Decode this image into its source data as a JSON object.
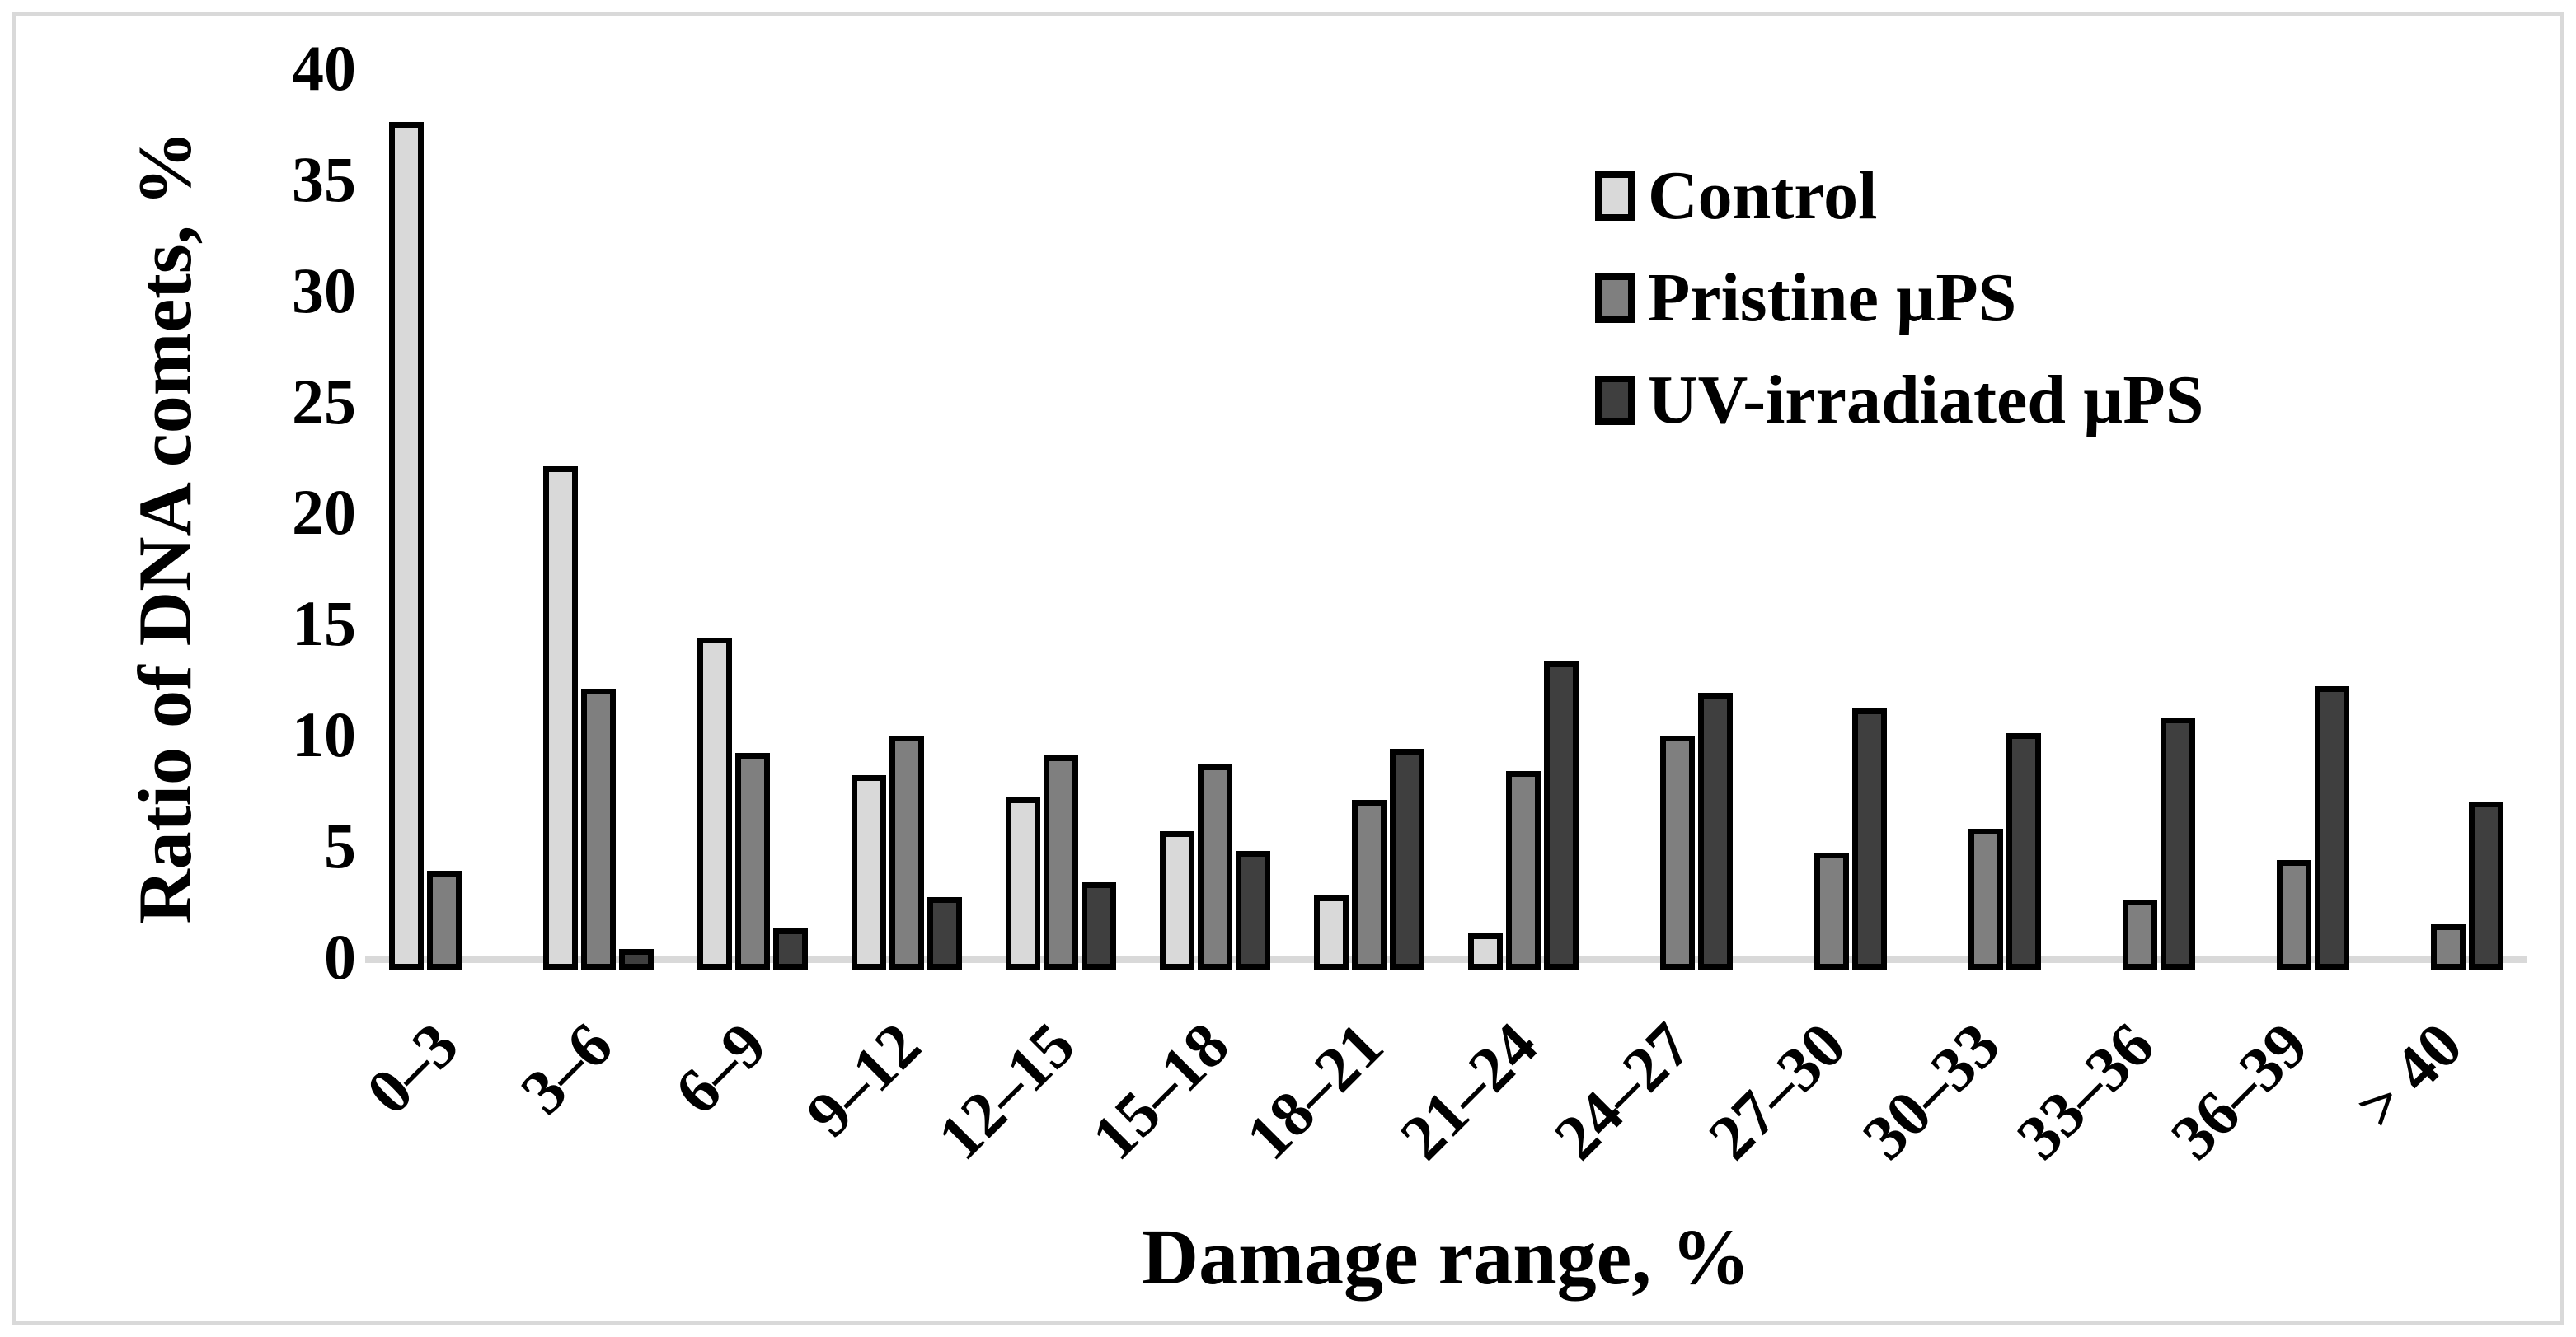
{
  "figure": {
    "y_axis_title": "Ratio of DNA comets, %",
    "x_axis_title": "Damage range, %"
  },
  "chart_data": {
    "type": "bar",
    "title": "",
    "xlabel": "Damage range, %",
    "ylabel": "Ratio of DNA comets, %",
    "ylim": [
      0,
      40
    ],
    "y_ticks": [
      40,
      35,
      30,
      25,
      20,
      15,
      10,
      5,
      0
    ],
    "grid": false,
    "legend_position": "upper right inside plot",
    "categories": [
      "0–3",
      "3–6",
      "6–9",
      "9–12",
      "12–15",
      "15–18",
      "18–21",
      "21–24",
      "24–27",
      "27–30",
      "30–33",
      "33–36",
      "36–39",
      "> 40"
    ],
    "series": [
      {
        "name": "Control",
        "color": "#D9D9D9",
        "values": [
          37.7,
          22.2,
          14.5,
          8.3,
          7.3,
          5.8,
          2.9,
          1.2,
          0,
          0,
          0,
          0,
          0,
          0
        ]
      },
      {
        "name": "Pristine µPS",
        "color": "#7F7F7F",
        "values": [
          4.0,
          12.2,
          9.3,
          10.1,
          9.2,
          8.8,
          7.2,
          8.5,
          10.1,
          4.8,
          5.9,
          2.7,
          4.5,
          1.6
        ]
      },
      {
        "name": "UV-irradiated µPS",
        "color": "#3F3F3F",
        "values": [
          0,
          0.5,
          1.4,
          2.8,
          3.5,
          4.9,
          9.5,
          13.4,
          12.0,
          11.3,
          10.2,
          10.9,
          12.3,
          7.1
        ]
      }
    ],
    "bar_border_color": "#000000",
    "axis_line_color": "#D9D9D9"
  }
}
